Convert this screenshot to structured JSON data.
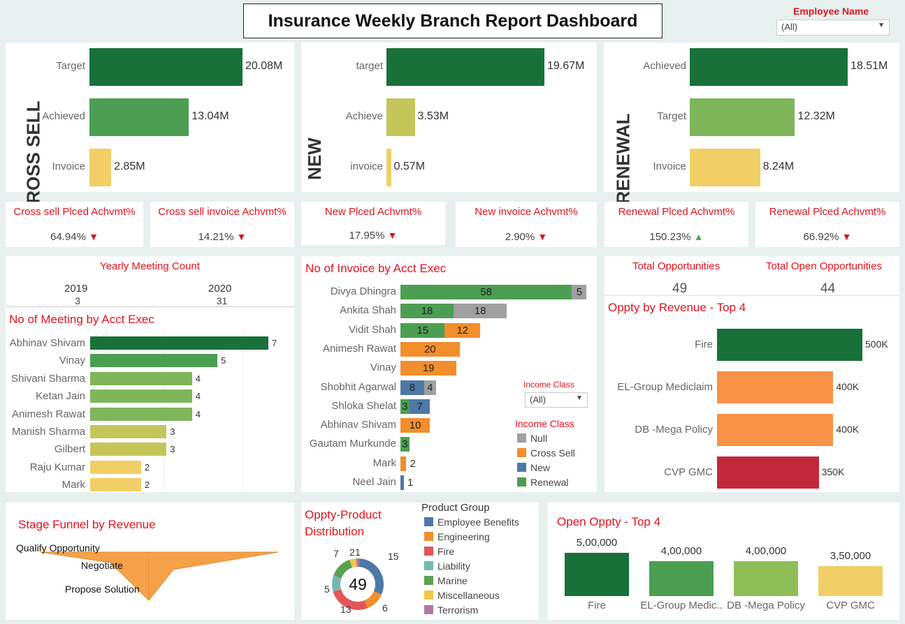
{
  "title": "Insurance Weekly Branch Report Dashboard",
  "employee_filter": {
    "label": "Employee Name",
    "value": "(All)"
  },
  "cross_sell": {
    "section_label": "CROSS SELL",
    "chart_data": {
      "type": "bar",
      "categories": [
        "Target",
        "Achieved",
        "Invoice"
      ],
      "values": [
        20.08,
        13.04,
        2.85
      ],
      "value_labels": [
        "20.08M",
        "13.04M",
        "2.85M"
      ],
      "colors": [
        "#19713a",
        "#4c9e53",
        "#f1cf66"
      ]
    }
  },
  "new": {
    "section_label": "NEW",
    "chart_data": {
      "type": "bar",
      "categories": [
        "target",
        "Achieve",
        "invoice"
      ],
      "values": [
        19.67,
        3.53,
        0.57
      ],
      "value_labels": [
        "19.67M",
        "3.53M",
        "0.57M"
      ],
      "colors": [
        "#19713a",
        "#c5c65a",
        "#f1cf66"
      ]
    }
  },
  "renewal": {
    "section_label": "RENEWAL",
    "chart_data": {
      "type": "bar",
      "categories": [
        "Achieved",
        "Target",
        "Invoice"
      ],
      "values": [
        18.51,
        12.32,
        8.24
      ],
      "value_labels": [
        "18.51M",
        "12.32M",
        "8.24M"
      ],
      "colors": [
        "#19713a",
        "#7fb65a",
        "#f1cf66"
      ]
    }
  },
  "kpis": [
    {
      "title": "Cross sell Plced Achvmt%",
      "value": "64.94%",
      "trend": "down"
    },
    {
      "title": "Cross sell invoice Achvmt%",
      "value": "14.21%",
      "trend": "down"
    },
    {
      "title": "New Plced Achvmt%",
      "value": "17.95%",
      "trend": "down"
    },
    {
      "title": "New invoice Achvmt%",
      "value": "2.90%",
      "trend": "down"
    },
    {
      "title": "Renewal Plced Achvmt%",
      "value": "150.23%",
      "trend": "up"
    },
    {
      "title": "Renewal Plced Achvmt%",
      "value": "66.92%",
      "trend": "down"
    }
  ],
  "trend_glyphs": {
    "down": "▼",
    "up": "▲"
  },
  "yearly_meeting": {
    "title": "Yearly Meeting Count",
    "years": [
      "2019",
      "2020"
    ],
    "counts": [
      "3",
      "31"
    ]
  },
  "meetings_by_exec": {
    "title": "No of Meeting by Acct Exec",
    "chart_data": {
      "type": "bar",
      "categories": [
        "Abhinav Shivam",
        "Vinay",
        "Shivani Sharma",
        "Ketan Jain",
        "Animesh Rawat",
        "Manish Sharma",
        "Gilbert",
        "Raju Kumar",
        "Mark"
      ],
      "values": [
        7,
        5,
        4,
        4,
        4,
        3,
        3,
        2,
        2
      ],
      "xlim": [
        0,
        7
      ],
      "colors": [
        "#19713a",
        "#4c9e53",
        "#7fb65a",
        "#7fb65a",
        "#7fb65a",
        "#c5c65a",
        "#c5c65a",
        "#f1cf66",
        "#f1cf66"
      ]
    }
  },
  "invoice_by_exec": {
    "title": "No of Invoice by Acct Exec",
    "chart_data": {
      "type": "bar",
      "categories": [
        "Divya Dhingra",
        "Ankita Shah",
        "Vidit Shah",
        "Animesh Rawat",
        "Vinay",
        "Shobhit Agarwal",
        "Shloka Shelat",
        "Abhinav Shivam",
        "Gautam Murkunde",
        "Mark",
        "Neel Jain"
      ],
      "series": [
        {
          "name": "Renewal",
          "color": "#4c9e53",
          "values": [
            58,
            18,
            15,
            0,
            0,
            0,
            3,
            0,
            3,
            0,
            0
          ]
        },
        {
          "name": "Cross Sell",
          "color": "#f28e2b",
          "values": [
            0,
            0,
            12,
            20,
            19,
            0,
            0,
            10,
            0,
            2,
            0
          ]
        },
        {
          "name": "New",
          "color": "#4e79a7",
          "values": [
            0,
            0,
            0,
            0,
            0,
            8,
            7,
            0,
            0,
            0,
            1
          ]
        },
        {
          "name": "Null",
          "color": "#a0a0a0",
          "values": [
            5,
            18,
            0,
            0,
            0,
            4,
            0,
            0,
            0,
            0,
            0
          ]
        }
      ]
    },
    "filter": {
      "label": "Income Class",
      "value": "(All)"
    },
    "legend": {
      "title": "Income Class",
      "items": [
        {
          "name": "Null",
          "color": "#a0a0a0"
        },
        {
          "name": "Cross Sell",
          "color": "#f28e2b"
        },
        {
          "name": "New",
          "color": "#4e79a7"
        },
        {
          "name": "Renewal",
          "color": "#4c9e53"
        }
      ]
    }
  },
  "opportunities": {
    "total_label": "Total Opportunities",
    "total": "49",
    "open_label": "Total Open Opportunities",
    "open": "44"
  },
  "oppty_revenue": {
    "title": "Oppty by Revenue - Top 4",
    "chart_data": {
      "type": "bar",
      "categories": [
        "Fire",
        "EL-Group Mediclaim",
        "DB -Mega Policy",
        "CVP GMC"
      ],
      "values": [
        500000,
        400000,
        400000,
        350000
      ],
      "value_labels": [
        "500K",
        "400K",
        "400K",
        "350K"
      ],
      "colors": [
        "#19713a",
        "#f79246",
        "#f79246",
        "#c1293b"
      ]
    }
  },
  "stage_funnel": {
    "title": "Stage Funnel by Revenue",
    "stages": [
      "Qualify Opportunity",
      "Negotiate",
      "Propose Solution"
    ]
  },
  "product_distribution": {
    "title_line1": "Oppty-Product",
    "title_line2": "Distribution",
    "center": "49",
    "chart_data": {
      "type": "pie",
      "values": [
        15,
        6,
        13,
        5,
        7,
        2,
        1
      ],
      "labels": [
        "15",
        "6",
        "13",
        "5",
        "7",
        "2",
        "1"
      ],
      "colors": [
        "#4e79a7",
        "#f28e2b",
        "#e15759",
        "#76b7b2",
        "#59a14f",
        "#edc948",
        "#b07aa1"
      ]
    },
    "legend": {
      "title": "Product Group",
      "items": [
        {
          "name": "Employee Benefits",
          "color": "#4e79a7"
        },
        {
          "name": "Engineering",
          "color": "#f28e2b"
        },
        {
          "name": "Fire",
          "color": "#e15759"
        },
        {
          "name": "Liability",
          "color": "#76b7b2"
        },
        {
          "name": "Marine",
          "color": "#59a14f"
        },
        {
          "name": "Miscellaneous",
          "color": "#edc948"
        },
        {
          "name": "Terrorism",
          "color": "#b07aa1"
        }
      ]
    }
  },
  "open_oppty": {
    "title": "Open Oppty - Top 4",
    "chart_data": {
      "type": "bar",
      "categories": [
        "Fire",
        "EL-Group Medic..",
        "DB -Mega Policy",
        "CVP GMC"
      ],
      "values": [
        500000,
        400000,
        400000,
        350000
      ],
      "value_labels": [
        "5,00,000",
        "4,00,000",
        "4,00,000",
        "3,50,000"
      ],
      "colors": [
        "#19713a",
        "#4c9e53",
        "#8fbd58",
        "#f1cf66"
      ]
    }
  }
}
